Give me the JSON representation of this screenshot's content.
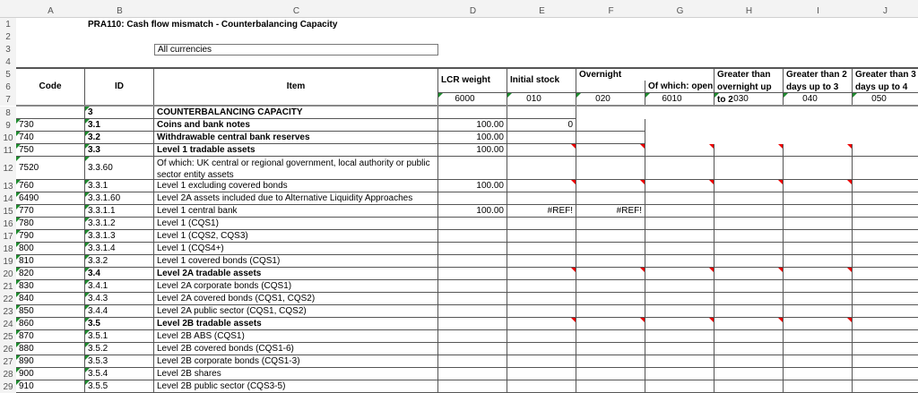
{
  "columns": [
    "A",
    "B",
    "C",
    "D",
    "E",
    "F",
    "G",
    "H",
    "I",
    "J"
  ],
  "title": "PRA110: Cash flow mismatch - Counterbalancing Capacity",
  "currency": "All currencies",
  "headers": {
    "code": "Code",
    "id": "ID",
    "item": "Item",
    "lcr": "LCR weight",
    "initial": "Initial stock",
    "overnight": "Overnight",
    "open": "Of which: open",
    "h": "Greater than overnight up to 2",
    "i": "Greater than 2 days up to 3",
    "j": "Greater than 3 days up to 4"
  },
  "col_codes": [
    "6000",
    "010",
    "020",
    "6010",
    "030",
    "040",
    "050"
  ],
  "rows": [
    {
      "n": "8",
      "code": "",
      "id": "3",
      "item": "COUNTERBALANCING CAPACITY",
      "bold": true,
      "lcr": "",
      "e": "",
      "f": ""
    },
    {
      "n": "9",
      "code": "730",
      "id": "3.1",
      "item": "Coins and bank notes",
      "bold": true,
      "lcr": "100.00",
      "e": "0",
      "f": ""
    },
    {
      "n": "10",
      "code": "740",
      "id": "3.2",
      "item": "Withdrawable central bank reserves",
      "bold": true,
      "lcr": "100.00",
      "e": "",
      "f": ""
    },
    {
      "n": "11",
      "code": "750",
      "id": "3.3",
      "item": "Level 1 tradable assets",
      "bold": true,
      "lcr": "100.00",
      "e": "",
      "f": "",
      "red": true
    },
    {
      "n": "12",
      "code": "7520",
      "id": "3.3.60",
      "item": "Of which: UK central or regional government, local authority or public sector entity assets",
      "lcr": "",
      "e": "",
      "f": "",
      "tall": true
    },
    {
      "n": "13",
      "code": "760",
      "id": "3.3.1",
      "item": "Level 1 excluding covered bonds",
      "lcr": "100.00",
      "e": "",
      "f": "",
      "red": true
    },
    {
      "n": "14",
      "code": "6490",
      "id": "3.3.1.60",
      "item": "Level 2A assets included due to Alternative Liquidity Approaches",
      "lcr": "",
      "e": "",
      "f": ""
    },
    {
      "n": "15",
      "code": "770",
      "id": "3.3.1.1",
      "item": "Level 1 central bank",
      "lcr": "100.00",
      "e": "#REF!",
      "f": "#REF!"
    },
    {
      "n": "16",
      "code": "780",
      "id": "3.3.1.2",
      "item": "Level 1 (CQS1)",
      "lcr": "",
      "e": "",
      "f": ""
    },
    {
      "n": "17",
      "code": "790",
      "id": "3.3.1.3",
      "item": "Level 1 (CQS2, CQS3)",
      "lcr": "",
      "e": "",
      "f": ""
    },
    {
      "n": "18",
      "code": "800",
      "id": "3.3.1.4",
      "item": "Level 1 (CQS4+)",
      "lcr": "",
      "e": "",
      "f": ""
    },
    {
      "n": "19",
      "code": "810",
      "id": "3.3.2",
      "item": "Level 1 covered bonds (CQS1)",
      "lcr": "",
      "e": "",
      "f": ""
    },
    {
      "n": "20",
      "code": "820",
      "id": "3.4",
      "item": "Level 2A tradable assets",
      "bold": true,
      "lcr": "",
      "e": "",
      "f": "",
      "red": true
    },
    {
      "n": "21",
      "code": "830",
      "id": "3.4.1",
      "item": "Level 2A corporate bonds (CQS1)",
      "lcr": "",
      "e": "",
      "f": ""
    },
    {
      "n": "22",
      "code": "840",
      "id": "3.4.3",
      "item": "Level 2A covered bonds (CQS1, CQS2)",
      "lcr": "",
      "e": "",
      "f": ""
    },
    {
      "n": "23",
      "code": "850",
      "id": "3.4.4",
      "item": "Level 2A public sector (CQS1, CQS2)",
      "lcr": "",
      "e": "",
      "f": ""
    },
    {
      "n": "24",
      "code": "860",
      "id": "3.5",
      "item": "Level 2B tradable assets",
      "bold": true,
      "lcr": "",
      "e": "",
      "f": "",
      "red": true
    },
    {
      "n": "25",
      "code": "870",
      "id": "3.5.1",
      "item": "Level 2B ABS (CQS1)",
      "lcr": "",
      "e": "",
      "f": ""
    },
    {
      "n": "26",
      "code": "880",
      "id": "3.5.2",
      "item": "Level 2B covered bonds (CQS1-6)",
      "lcr": "",
      "e": "",
      "f": ""
    },
    {
      "n": "27",
      "code": "890",
      "id": "3.5.3",
      "item": "Level 2B corporate bonds (CQS1-3)",
      "lcr": "",
      "e": "",
      "f": ""
    },
    {
      "n": "28",
      "code": "900",
      "id": "3.5.4",
      "item": "Level 2B shares",
      "lcr": "",
      "e": "",
      "f": ""
    },
    {
      "n": "29",
      "code": "910",
      "id": "3.5.5",
      "item": "Level 2B public sector (CQS3-5)",
      "lcr": "",
      "e": "",
      "f": ""
    }
  ]
}
